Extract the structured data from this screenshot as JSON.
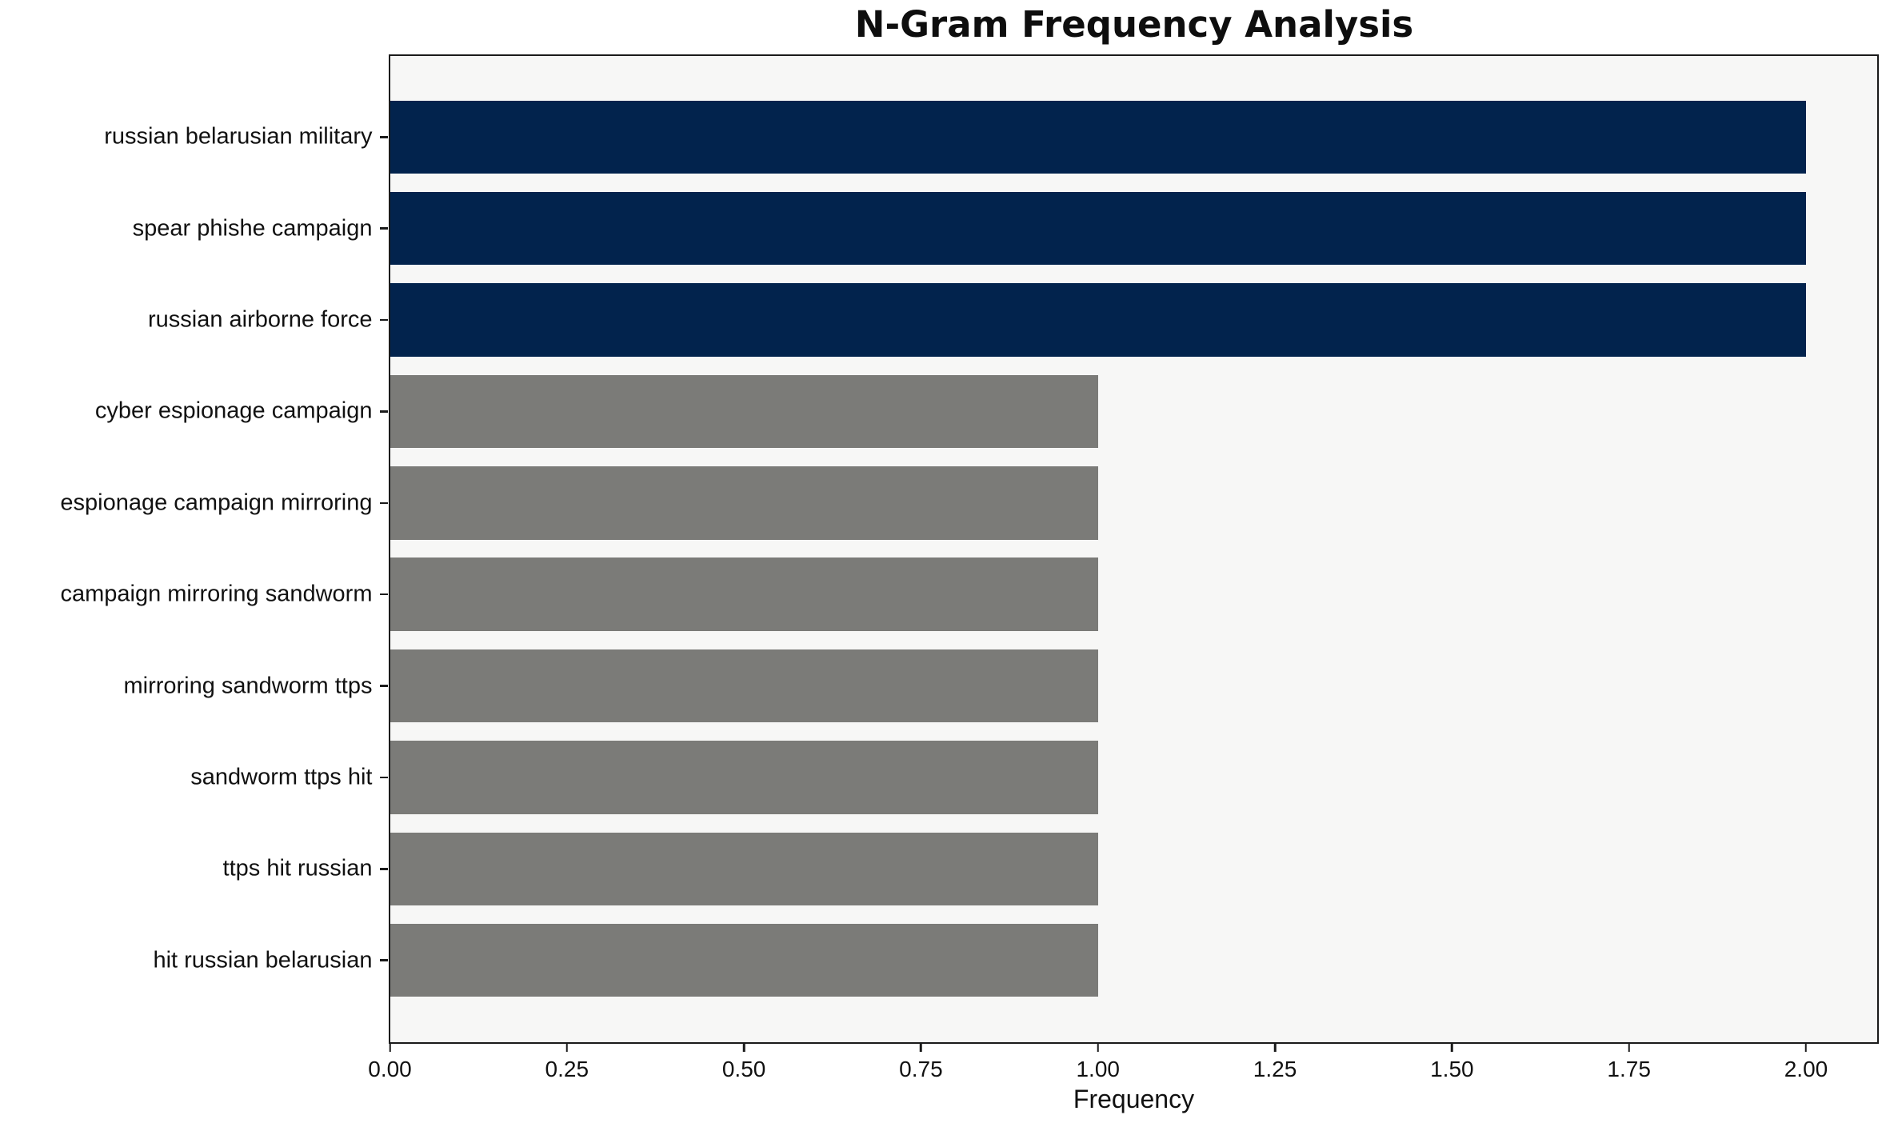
{
  "chart_data": {
    "type": "bar",
    "orientation": "horizontal",
    "title": "N-Gram Frequency Analysis",
    "xlabel": "Frequency",
    "ylabel": "",
    "categories": [
      "russian belarusian military",
      "spear phishe campaign",
      "russian airborne force",
      "cyber espionage campaign",
      "espionage campaign mirroring",
      "campaign mirroring sandworm",
      "mirroring sandworm ttps",
      "sandworm ttps hit",
      "ttps hit russian",
      "hit russian belarusian"
    ],
    "values": [
      2,
      2,
      2,
      1,
      1,
      1,
      1,
      1,
      1,
      1
    ],
    "bar_colors": [
      "#02234d",
      "#02234d",
      "#02234d",
      "#7b7b78",
      "#7b7b78",
      "#7b7b78",
      "#7b7b78",
      "#7b7b78",
      "#7b7b78",
      "#7b7b78"
    ],
    "colors": {
      "highlight_bar": "#02234d",
      "regular_bar": "#7b7b78",
      "plot_background": "#f7f7f6",
      "spine": "#1a1a1a"
    },
    "xlim": [
      0,
      2.1
    ],
    "xticks": {
      "values": [
        0,
        0.25,
        0.5,
        0.75,
        1.0,
        1.25,
        1.5,
        1.75,
        2.0
      ],
      "labels": [
        "0.00",
        "0.25",
        "0.50",
        "0.75",
        "1.00",
        "1.25",
        "1.50",
        "1.75",
        "2.00"
      ]
    },
    "grid": false,
    "legend_position": "none"
  }
}
